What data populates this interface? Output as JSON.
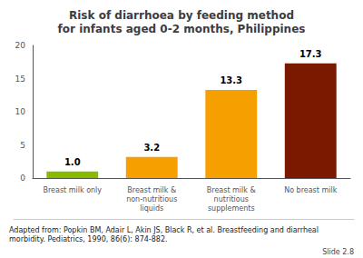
{
  "chart_data": {
    "type": "bar",
    "title": "Risk of diarrhoea by feeding method\nfor infants aged 0-2 months, Philippines",
    "categories": [
      "Breast milk only",
      "Breast milk &\nnon-nutritious\nliquids",
      "Breast milk &\nnutritious\nsupplements",
      "No breast milk"
    ],
    "values": [
      1.0,
      3.2,
      13.3,
      17.3
    ],
    "value_labels": [
      "1.0",
      "3.2",
      "13.3",
      "17.3"
    ],
    "colors": [
      "#88bb00",
      "#f5a000",
      "#f5a000",
      "#7a1800"
    ],
    "ylim": [
      0,
      20
    ],
    "yticks": [
      0,
      5,
      10,
      15,
      20
    ],
    "grid": false,
    "data_labels": true,
    "annotations": [
      "Adapted from: Popkin BM, Adair L, Akin JS, Black R, et al. Breastfeeding and diarrheal\nmorbidity. Pediatrics, 1990, 86(6): 874-882.",
      "Slide 2.8"
    ]
  }
}
